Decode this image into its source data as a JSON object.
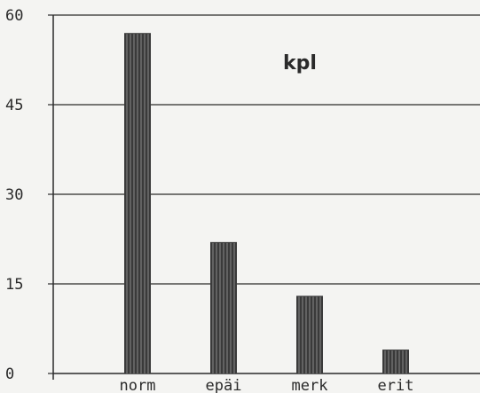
{
  "chart_data": {
    "type": "bar",
    "title": "kpl",
    "categories": [
      "norm",
      "epäi",
      "merk",
      "erit"
    ],
    "values": [
      57,
      22,
      13,
      4
    ],
    "ylim": [
      0,
      60
    ],
    "yticks": [
      0,
      15,
      30,
      45,
      60
    ],
    "grid": true,
    "bar_color": "#3a3a3a"
  }
}
